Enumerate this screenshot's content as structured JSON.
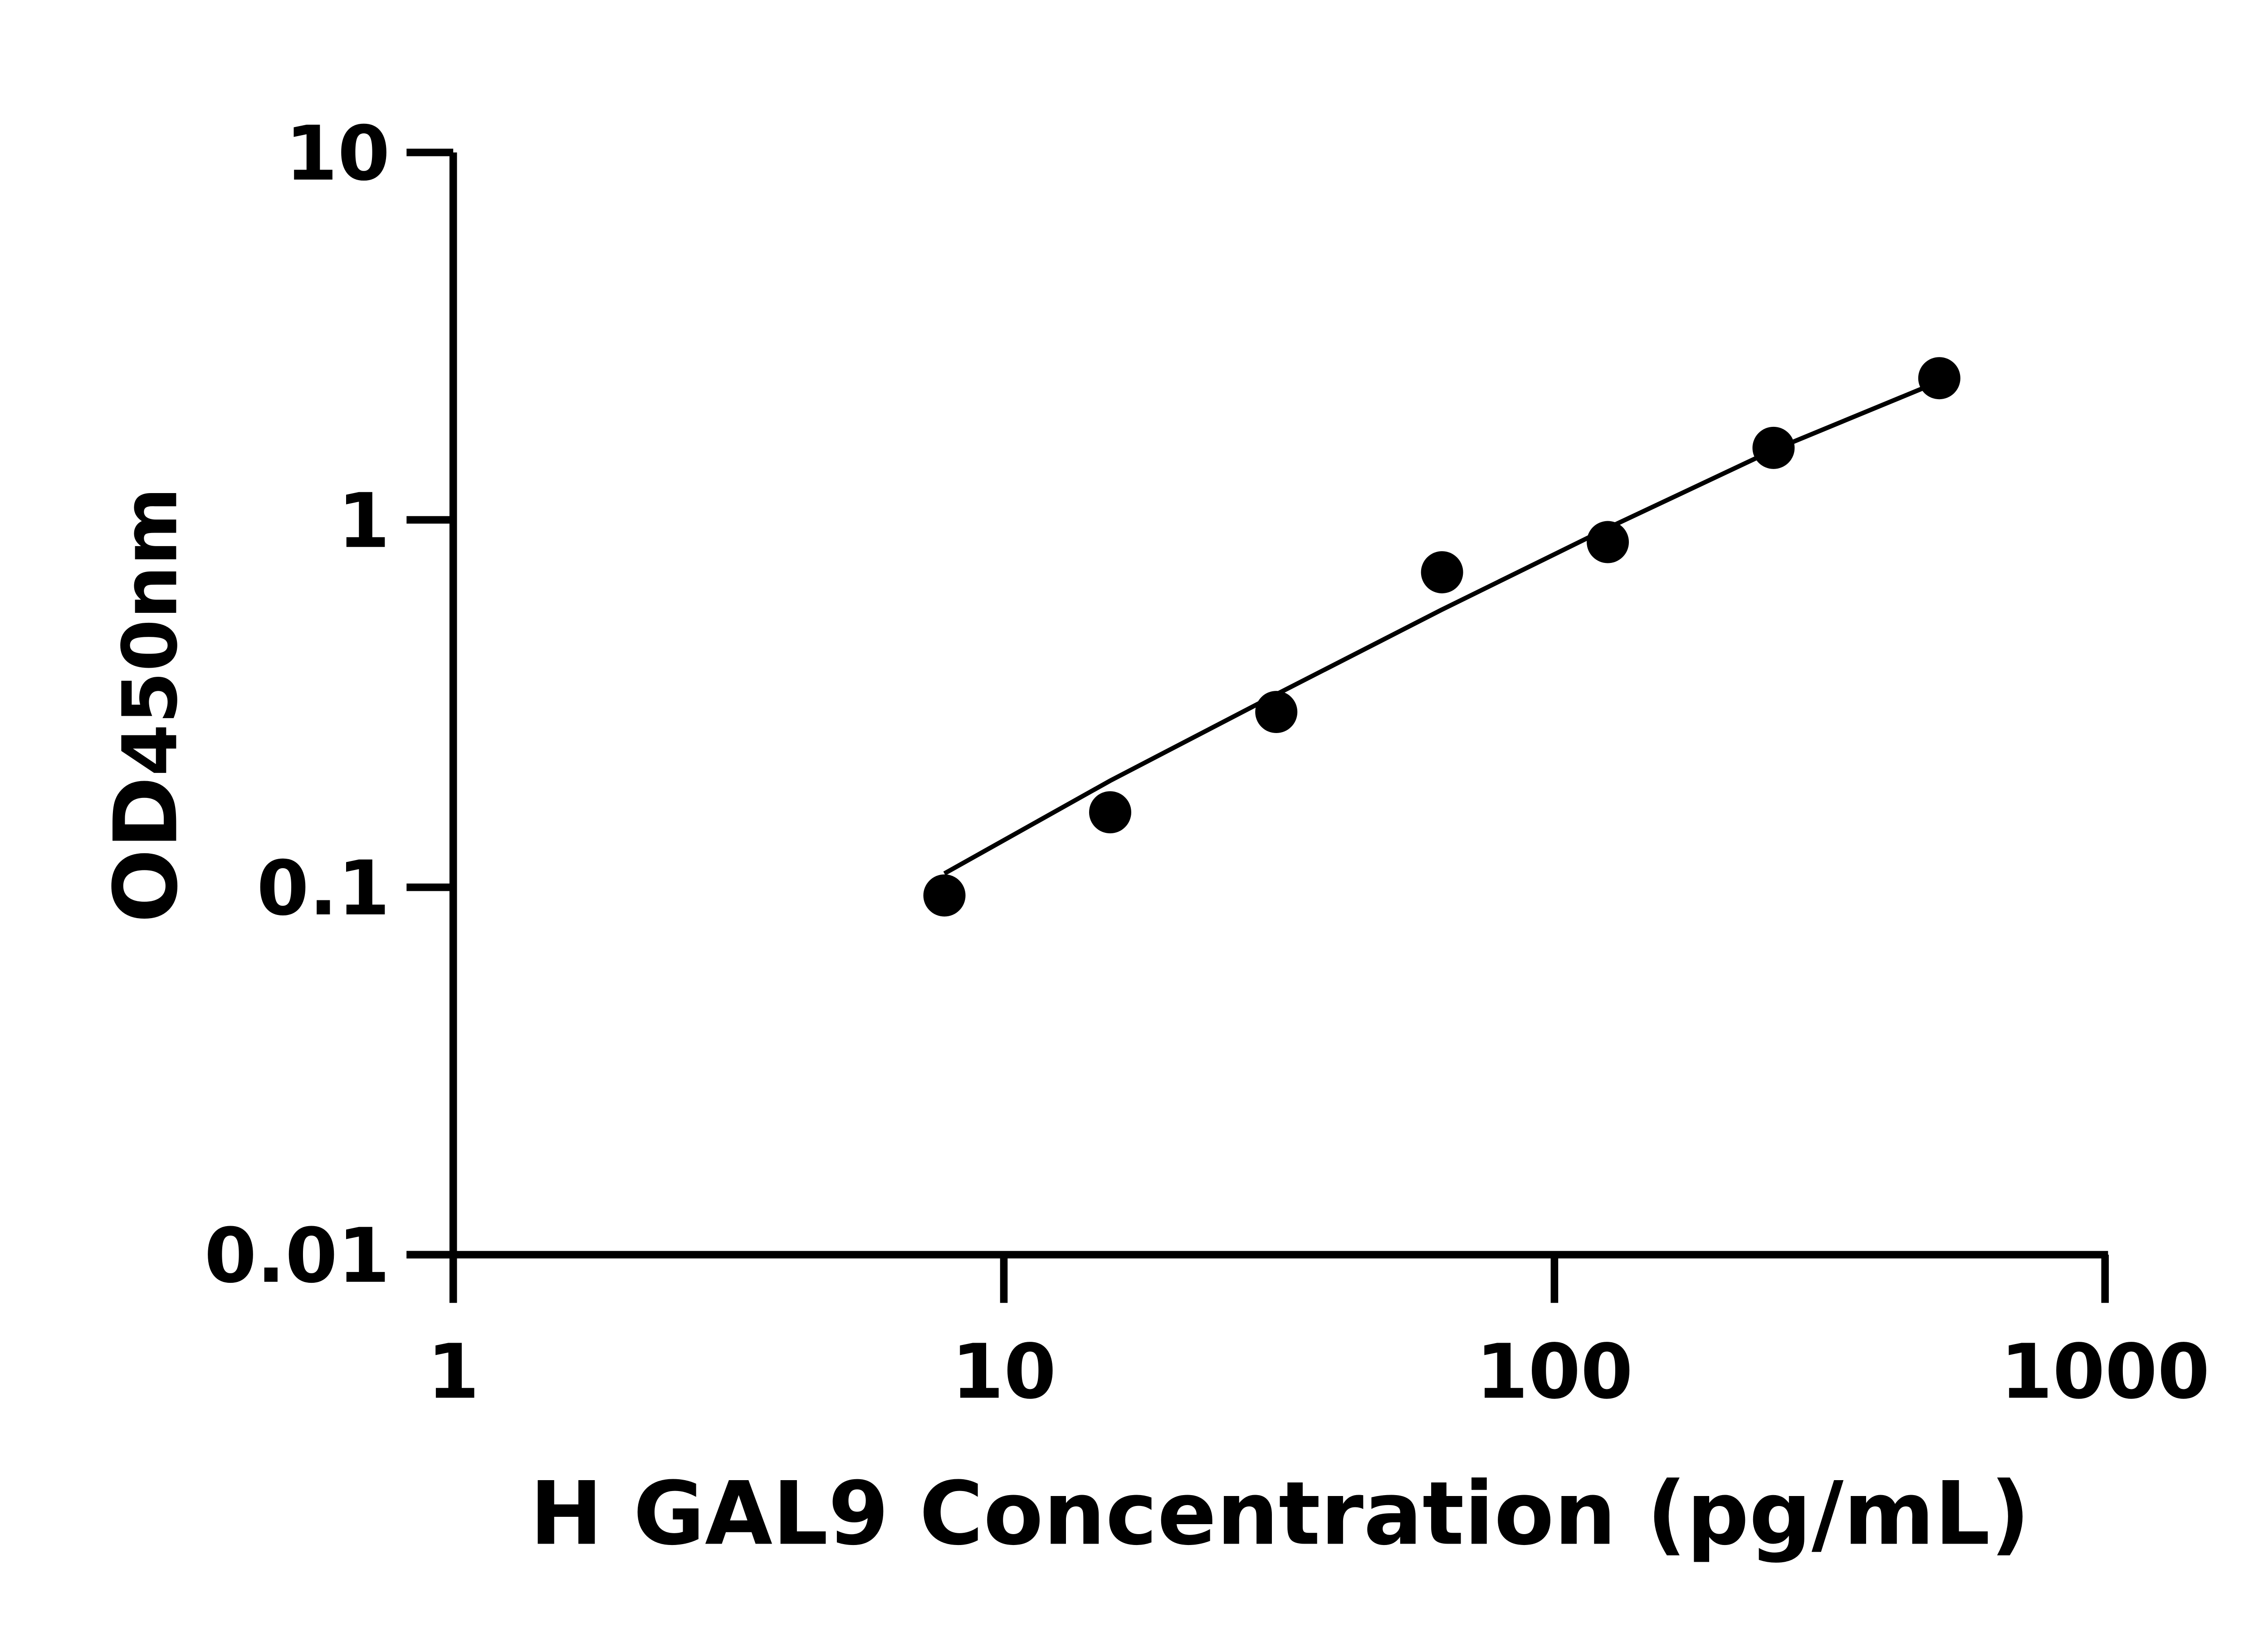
{
  "chart_data": {
    "type": "scatter",
    "title": "",
    "xlabel": "H GAL9 Concentration (pg/mL)",
    "ylabel_main": "OD",
    "ylabel_sub": "450nm",
    "x_scale": "log",
    "y_scale": "log",
    "xlim": [
      1,
      1000
    ],
    "ylim": [
      0.01,
      10
    ],
    "x_ticks": [
      1,
      10,
      100,
      1000
    ],
    "x_tick_labels": [
      "1",
      "10",
      "100",
      "1000"
    ],
    "y_ticks": [
      0.01,
      0.1,
      1,
      10
    ],
    "y_tick_labels": [
      "0.01",
      "0.1",
      "1",
      "10"
    ],
    "grid": false,
    "legend": "none",
    "series": [
      {
        "kind": "points",
        "x": [
          7.8,
          15.6,
          31.25,
          62.5,
          125,
          250,
          500
        ],
        "y": [
          0.095,
          0.16,
          0.3,
          0.72,
          0.87,
          1.57,
          2.43
        ]
      },
      {
        "kind": "fit-line",
        "x": [
          7.8,
          15.6,
          31.25,
          62.5,
          125,
          250,
          500
        ],
        "y": [
          0.109,
          0.195,
          0.335,
          0.57,
          0.95,
          1.55,
          2.38
        ]
      }
    ],
    "colors": {
      "points": "#000000",
      "line": "#000000",
      "axes": "#000000"
    }
  }
}
